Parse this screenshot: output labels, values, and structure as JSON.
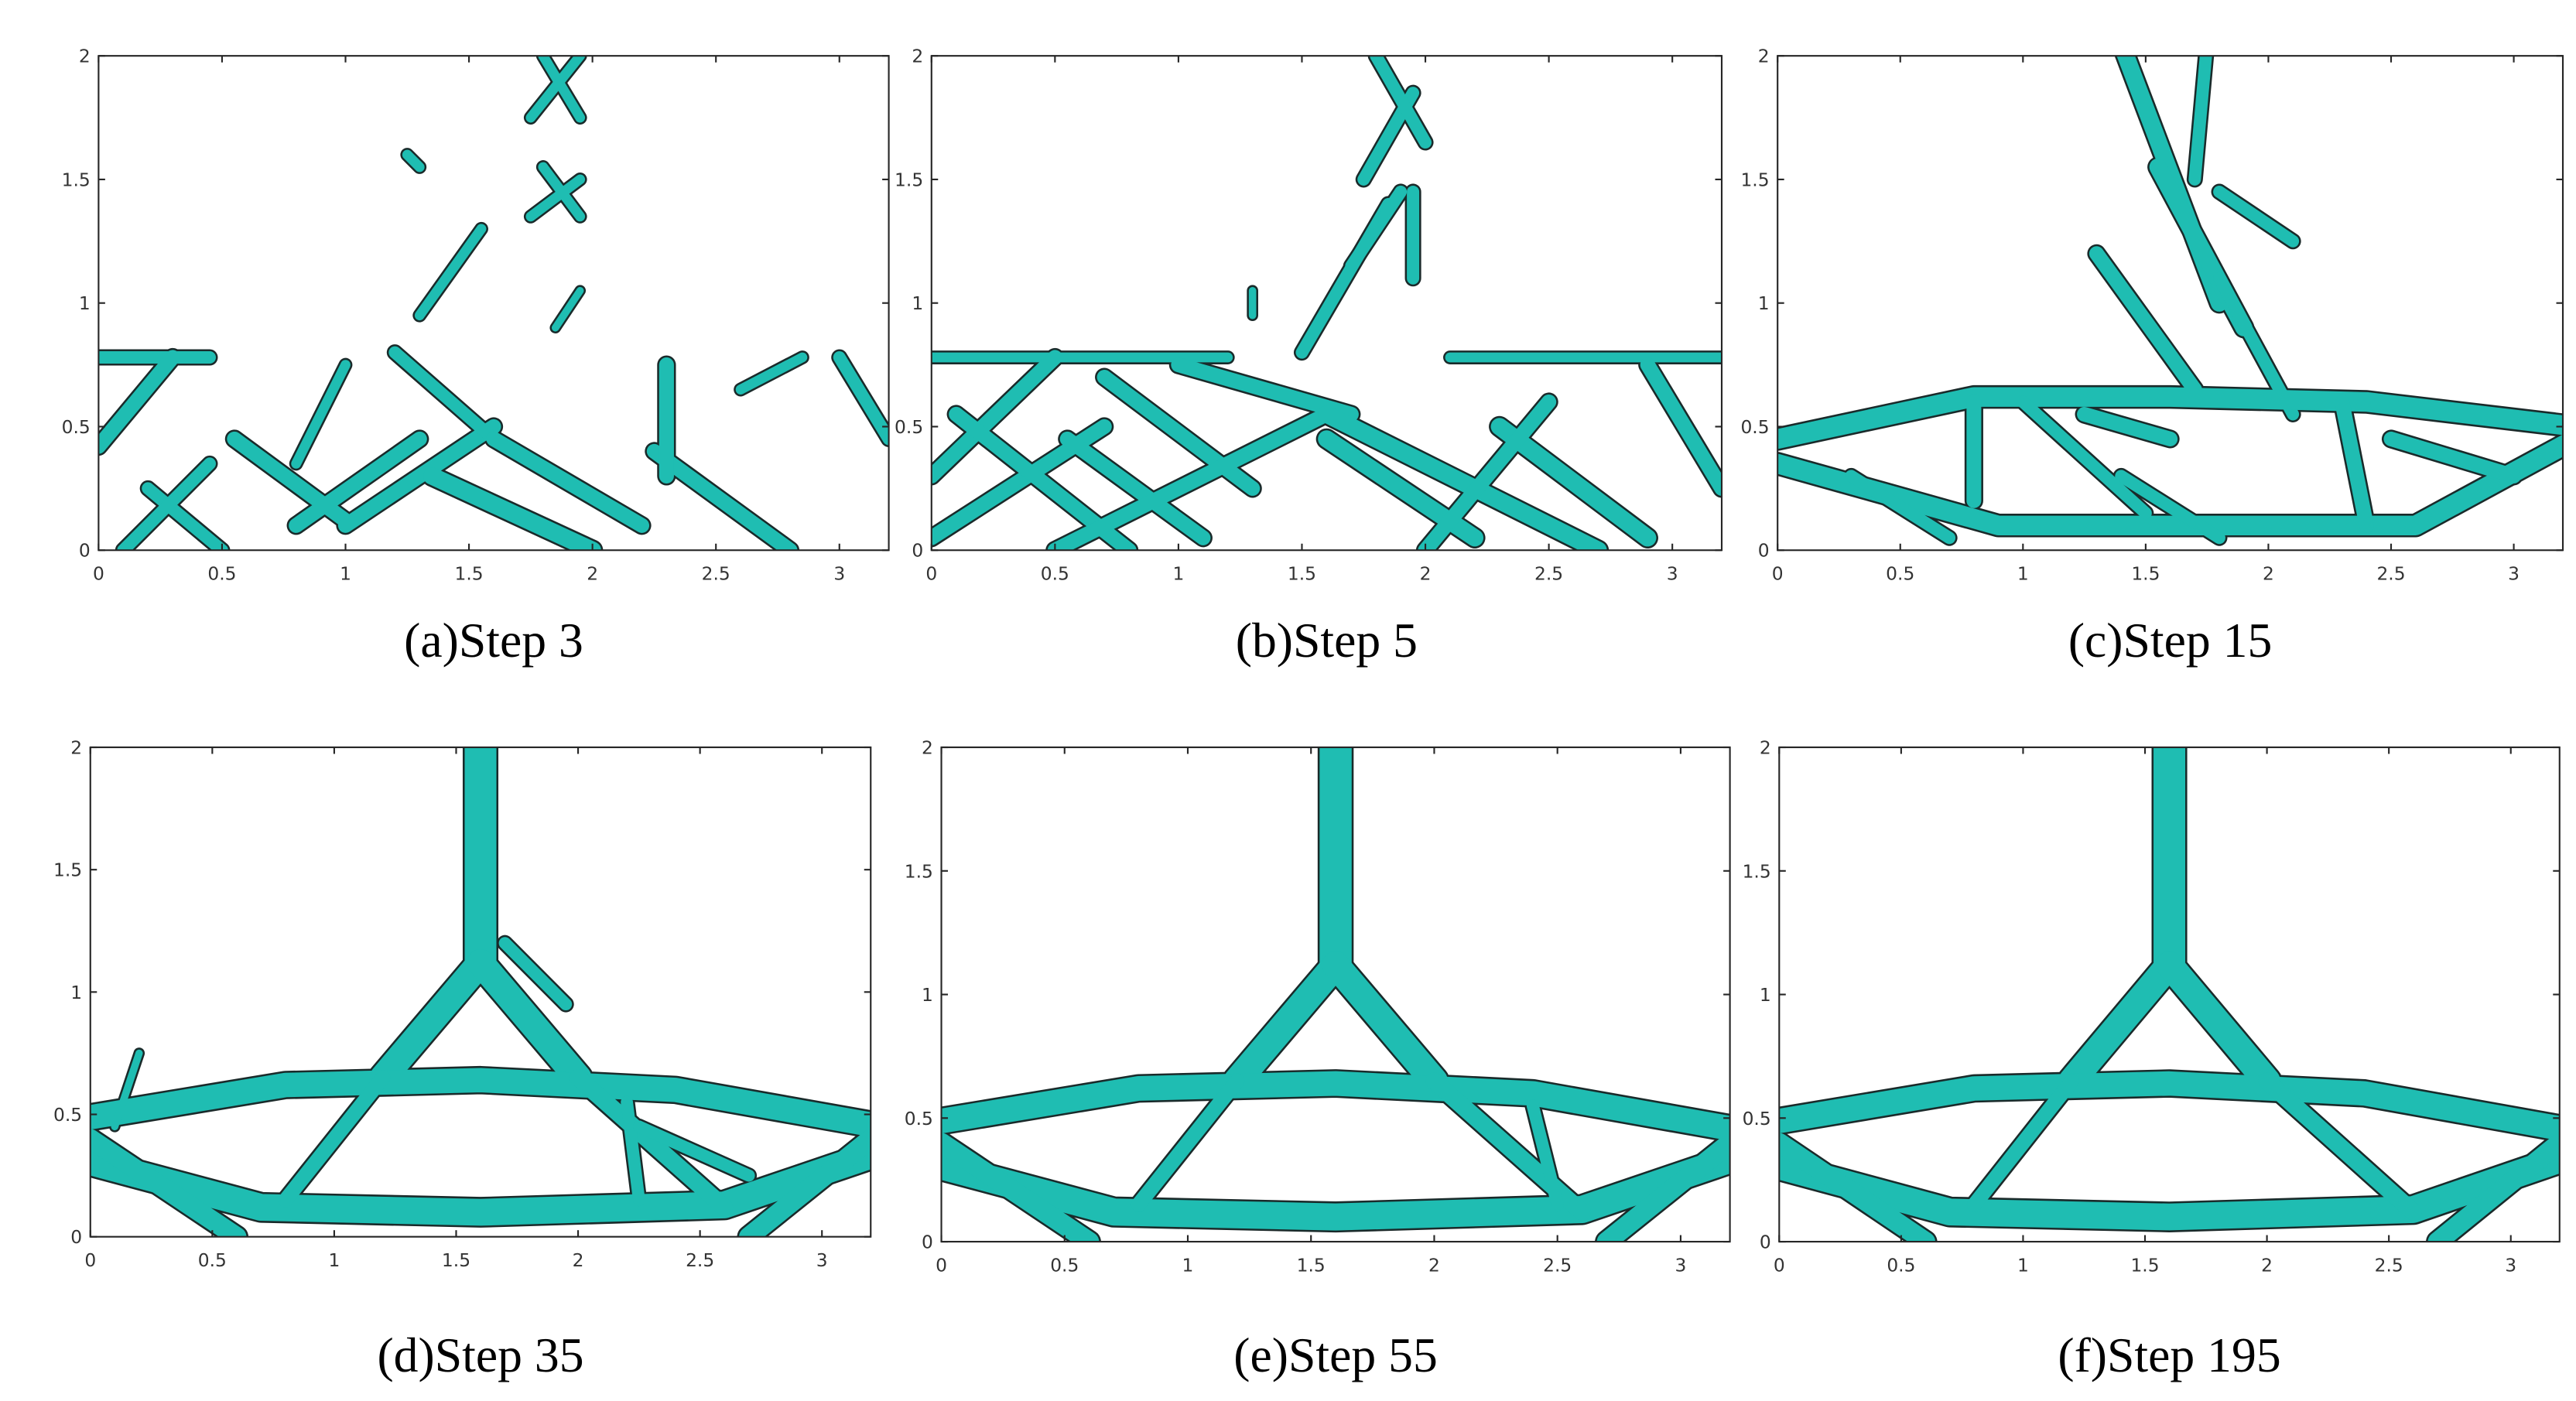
{
  "chart_data": [
    {
      "type": "topology",
      "caption": "(a)Step 3",
      "xlim": [
        0,
        3.2
      ],
      "ylim": [
        0,
        2
      ],
      "xticks": [
        0,
        0.5,
        1,
        1.5,
        2,
        2.5,
        3
      ],
      "yticks": [
        0,
        0.5,
        1,
        1.5,
        2
      ]
    },
    {
      "type": "topology",
      "caption": "(b)Step 5",
      "xlim": [
        0,
        3.2
      ],
      "ylim": [
        0,
        2
      ],
      "xticks": [
        0,
        0.5,
        1,
        1.5,
        2,
        2.5,
        3
      ],
      "yticks": [
        0,
        0.5,
        1,
        1.5,
        2
      ]
    },
    {
      "type": "topology",
      "caption": "(c)Step 15",
      "xlim": [
        0,
        3.2
      ],
      "ylim": [
        0,
        2
      ],
      "xticks": [
        0,
        0.5,
        1,
        1.5,
        2,
        2.5,
        3
      ],
      "yticks": [
        0,
        0.5,
        1,
        1.5,
        2
      ]
    },
    {
      "type": "topology",
      "caption": "(d)Step 35",
      "xlim": [
        0,
        3.2
      ],
      "ylim": [
        0,
        2
      ],
      "xticks": [
        0,
        0.5,
        1,
        1.5,
        2,
        2.5,
        3
      ],
      "yticks": [
        0,
        0.5,
        1,
        1.5,
        2
      ]
    },
    {
      "type": "topology",
      "caption": "(e)Step 55",
      "xlim": [
        0,
        3.2
      ],
      "ylim": [
        0,
        2
      ],
      "xticks": [
        0,
        0.5,
        1,
        1.5,
        2,
        2.5,
        3
      ],
      "yticks": [
        0,
        0.5,
        1,
        1.5,
        2
      ]
    },
    {
      "type": "topology",
      "caption": "(f)Step 195",
      "xlim": [
        0,
        3.2
      ],
      "ylim": [
        0,
        2
      ],
      "xticks": [
        0,
        0.5,
        1,
        1.5,
        2,
        2.5,
        3
      ],
      "yticks": [
        0,
        0.5,
        1,
        1.5,
        2
      ]
    }
  ]
}
